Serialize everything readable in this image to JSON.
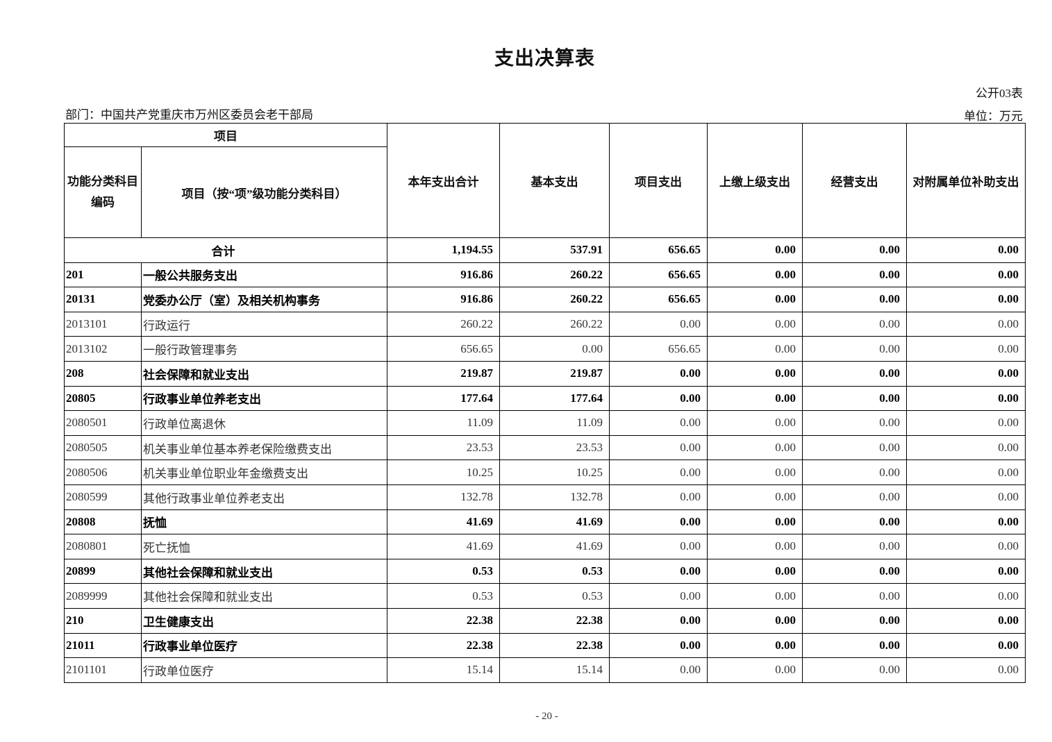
{
  "title": "支出决算表",
  "form_no": "公开03表",
  "department": "部门：中国共产党重庆市万州区委员会老干部局",
  "unit": "单位：万元",
  "header": {
    "project_group": "项目",
    "code": "功能分类科目编码",
    "name": "项目（按“项”级功能分类科目）",
    "columns": [
      "本年支出合计",
      "基本支出",
      "项目支出",
      "上缴上级支出",
      "经营支出",
      "对附属单位补助支出"
    ]
  },
  "total_row": {
    "label": "合计",
    "values": [
      "1,194.55",
      "537.91",
      "656.65",
      "0.00",
      "0.00",
      "0.00"
    ]
  },
  "rows": [
    {
      "code": "201",
      "name": "一般公共服务支出",
      "bold": true,
      "values": [
        "916.86",
        "260.22",
        "656.65",
        "0.00",
        "0.00",
        "0.00"
      ]
    },
    {
      "code": "20131",
      "name": "党委办公厅（室）及相关机构事务",
      "bold": true,
      "values": [
        "916.86",
        "260.22",
        "656.65",
        "0.00",
        "0.00",
        "0.00"
      ]
    },
    {
      "code": "2013101",
      "name": "行政运行",
      "bold": false,
      "values": [
        "260.22",
        "260.22",
        "0.00",
        "0.00",
        "0.00",
        "0.00"
      ]
    },
    {
      "code": "2013102",
      "name": "一般行政管理事务",
      "bold": false,
      "values": [
        "656.65",
        "0.00",
        "656.65",
        "0.00",
        "0.00",
        "0.00"
      ]
    },
    {
      "code": "208",
      "name": "社会保障和就业支出",
      "bold": true,
      "values": [
        "219.87",
        "219.87",
        "0.00",
        "0.00",
        "0.00",
        "0.00"
      ]
    },
    {
      "code": "20805",
      "name": "行政事业单位养老支出",
      "bold": true,
      "values": [
        "177.64",
        "177.64",
        "0.00",
        "0.00",
        "0.00",
        "0.00"
      ]
    },
    {
      "code": "2080501",
      "name": "行政单位离退休",
      "bold": false,
      "values": [
        "11.09",
        "11.09",
        "0.00",
        "0.00",
        "0.00",
        "0.00"
      ]
    },
    {
      "code": "2080505",
      "name": "机关事业单位基本养老保险缴费支出",
      "bold": false,
      "values": [
        "23.53",
        "23.53",
        "0.00",
        "0.00",
        "0.00",
        "0.00"
      ]
    },
    {
      "code": "2080506",
      "name": "机关事业单位职业年金缴费支出",
      "bold": false,
      "values": [
        "10.25",
        "10.25",
        "0.00",
        "0.00",
        "0.00",
        "0.00"
      ]
    },
    {
      "code": "2080599",
      "name": "其他行政事业单位养老支出",
      "bold": false,
      "values": [
        "132.78",
        "132.78",
        "0.00",
        "0.00",
        "0.00",
        "0.00"
      ]
    },
    {
      "code": "20808",
      "name": "抚恤",
      "bold": true,
      "values": [
        "41.69",
        "41.69",
        "0.00",
        "0.00",
        "0.00",
        "0.00"
      ]
    },
    {
      "code": "2080801",
      "name": "死亡抚恤",
      "bold": false,
      "values": [
        "41.69",
        "41.69",
        "0.00",
        "0.00",
        "0.00",
        "0.00"
      ]
    },
    {
      "code": "20899",
      "name": "其他社会保障和就业支出",
      "bold": true,
      "values": [
        "0.53",
        "0.53",
        "0.00",
        "0.00",
        "0.00",
        "0.00"
      ]
    },
    {
      "code": "2089999",
      "name": "其他社会保障和就业支出",
      "bold": false,
      "values": [
        "0.53",
        "0.53",
        "0.00",
        "0.00",
        "0.00",
        "0.00"
      ]
    },
    {
      "code": "210",
      "name": "卫生健康支出",
      "bold": true,
      "values": [
        "22.38",
        "22.38",
        "0.00",
        "0.00",
        "0.00",
        "0.00"
      ]
    },
    {
      "code": "21011",
      "name": "行政事业单位医疗",
      "bold": true,
      "values": [
        "22.38",
        "22.38",
        "0.00",
        "0.00",
        "0.00",
        "0.00"
      ]
    },
    {
      "code": "2101101",
      "name": "行政单位医疗",
      "bold": false,
      "values": [
        "15.14",
        "15.14",
        "0.00",
        "0.00",
        "0.00",
        "0.00"
      ]
    }
  ],
  "page_number": "- 20 -"
}
